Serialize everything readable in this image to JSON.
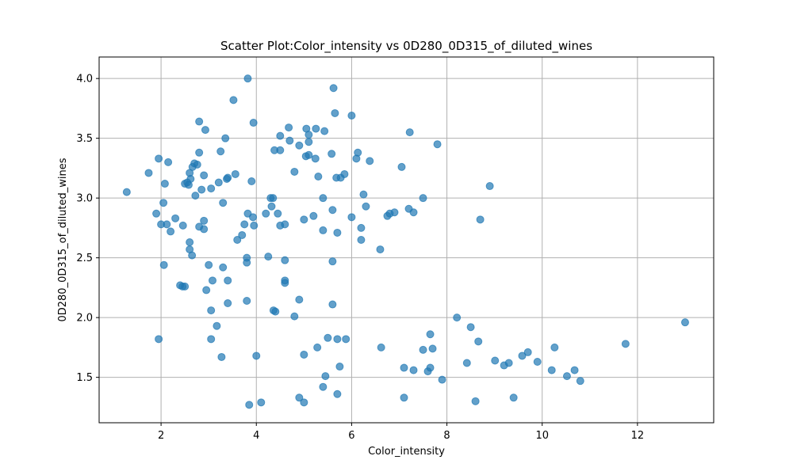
{
  "chart_data": {
    "type": "scatter",
    "title": "Scatter Plot:Color_intensity vs 0D280_0D315_of_diluted_wines",
    "xlabel": "Color_intensity",
    "ylabel": "0D280_0D315_of_diluted_wines",
    "xlim": [
      0.7,
      13.6
    ],
    "ylim": [
      1.12,
      4.18
    ],
    "xticks": [
      2,
      4,
      6,
      8,
      10,
      12
    ],
    "xtick_labels": [
      "2",
      "4",
      "6",
      "8",
      "10",
      "12"
    ],
    "yticks": [
      1.5,
      2.0,
      2.5,
      3.0,
      3.5,
      4.0
    ],
    "ytick_labels": [
      "1.5",
      "2.0",
      "2.5",
      "3.0",
      "3.5",
      "4.0"
    ],
    "grid": true,
    "point_color": "#1f77b4",
    "point_opacity": 0.7,
    "points": [
      [
        1.28,
        3.05
      ],
      [
        1.74,
        3.21
      ],
      [
        1.9,
        2.87
      ],
      [
        1.95,
        3.33
      ],
      [
        1.95,
        1.82
      ],
      [
        2.0,
        2.78
      ],
      [
        2.05,
        2.96
      ],
      [
        2.06,
        2.44
      ],
      [
        2.08,
        3.12
      ],
      [
        2.12,
        2.78
      ],
      [
        2.15,
        3.3
      ],
      [
        2.2,
        2.72
      ],
      [
        2.3,
        2.83
      ],
      [
        2.4,
        2.27
      ],
      [
        2.45,
        2.26
      ],
      [
        2.46,
        2.77
      ],
      [
        2.5,
        2.26
      ],
      [
        2.5,
        3.12
      ],
      [
        2.55,
        3.13
      ],
      [
        2.58,
        3.11
      ],
      [
        2.6,
        3.21
      ],
      [
        2.6,
        2.63
      ],
      [
        2.6,
        2.57
      ],
      [
        2.62,
        3.16
      ],
      [
        2.65,
        2.52
      ],
      [
        2.66,
        3.26
      ],
      [
        2.7,
        3.29
      ],
      [
        2.72,
        3.02
      ],
      [
        2.76,
        3.28
      ],
      [
        2.8,
        3.64
      ],
      [
        2.8,
        2.76
      ],
      [
        2.8,
        3.38
      ],
      [
        2.85,
        3.07
      ],
      [
        2.9,
        3.19
      ],
      [
        2.9,
        2.74
      ],
      [
        2.9,
        2.81
      ],
      [
        2.93,
        3.57
      ],
      [
        2.95,
        2.23
      ],
      [
        3.0,
        2.44
      ],
      [
        3.05,
        2.06
      ],
      [
        3.05,
        1.82
      ],
      [
        3.05,
        3.08
      ],
      [
        3.08,
        2.31
      ],
      [
        3.17,
        1.93
      ],
      [
        3.21,
        3.13
      ],
      [
        3.25,
        3.39
      ],
      [
        3.27,
        1.67
      ],
      [
        3.3,
        2.96
      ],
      [
        3.3,
        2.42
      ],
      [
        3.35,
        3.5
      ],
      [
        3.38,
        3.16
      ],
      [
        3.4,
        2.31
      ],
      [
        3.4,
        3.17
      ],
      [
        3.4,
        2.12
      ],
      [
        3.52,
        3.82
      ],
      [
        3.56,
        3.2
      ],
      [
        3.6,
        2.65
      ],
      [
        3.7,
        2.69
      ],
      [
        3.75,
        2.78
      ],
      [
        3.8,
        2.14
      ],
      [
        3.8,
        2.5
      ],
      [
        3.8,
        2.46
      ],
      [
        3.82,
        2.87
      ],
      [
        3.82,
        4.0
      ],
      [
        3.85,
        1.27
      ],
      [
        3.9,
        3.14
      ],
      [
        3.93,
        2.84
      ],
      [
        3.94,
        3.63
      ],
      [
        3.95,
        2.77
      ],
      [
        4.0,
        1.68
      ],
      [
        4.1,
        1.29
      ],
      [
        4.2,
        2.87
      ],
      [
        4.25,
        2.51
      ],
      [
        4.3,
        3.0
      ],
      [
        4.32,
        2.93
      ],
      [
        4.35,
        3.0
      ],
      [
        4.36,
        2.06
      ],
      [
        4.38,
        3.4
      ],
      [
        4.4,
        2.05
      ],
      [
        4.45,
        2.87
      ],
      [
        4.5,
        3.52
      ],
      [
        4.5,
        2.77
      ],
      [
        4.5,
        3.4
      ],
      [
        4.6,
        2.78
      ],
      [
        4.6,
        2.48
      ],
      [
        4.6,
        2.29
      ],
      [
        4.6,
        2.31
      ],
      [
        4.68,
        3.59
      ],
      [
        4.7,
        3.48
      ],
      [
        4.8,
        3.22
      ],
      [
        4.8,
        2.01
      ],
      [
        4.9,
        3.44
      ],
      [
        4.9,
        2.15
      ],
      [
        4.9,
        1.33
      ],
      [
        5.0,
        2.82
      ],
      [
        5.0,
        1.29
      ],
      [
        5.0,
        1.69
      ],
      [
        5.04,
        3.35
      ],
      [
        5.05,
        3.58
      ],
      [
        5.1,
        3.53
      ],
      [
        5.1,
        3.36
      ],
      [
        5.1,
        3.47
      ],
      [
        5.2,
        2.85
      ],
      [
        5.24,
        3.33
      ],
      [
        5.25,
        3.58
      ],
      [
        5.28,
        1.75
      ],
      [
        5.3,
        3.18
      ],
      [
        5.4,
        1.42
      ],
      [
        5.4,
        2.73
      ],
      [
        5.4,
        3.0
      ],
      [
        5.43,
        3.56
      ],
      [
        5.45,
        1.51
      ],
      [
        5.5,
        1.83
      ],
      [
        5.58,
        3.37
      ],
      [
        5.6,
        2.9
      ],
      [
        5.6,
        2.47
      ],
      [
        5.6,
        2.11
      ],
      [
        5.62,
        3.92
      ],
      [
        5.65,
        3.71
      ],
      [
        5.68,
        3.17
      ],
      [
        5.7,
        2.71
      ],
      [
        5.7,
        1.82
      ],
      [
        5.7,
        1.36
      ],
      [
        5.75,
        1.59
      ],
      [
        5.77,
        3.17
      ],
      [
        5.85,
        3.2
      ],
      [
        5.88,
        1.82
      ],
      [
        6.0,
        3.69
      ],
      [
        6.0,
        2.84
      ],
      [
        6.1,
        3.33
      ],
      [
        6.13,
        3.38
      ],
      [
        6.2,
        2.65
      ],
      [
        6.2,
        2.75
      ],
      [
        6.25,
        3.03
      ],
      [
        6.3,
        2.93
      ],
      [
        6.38,
        3.31
      ],
      [
        6.6,
        2.57
      ],
      [
        6.62,
        1.75
      ],
      [
        6.75,
        2.85
      ],
      [
        6.8,
        2.87
      ],
      [
        6.9,
        2.88
      ],
      [
        7.05,
        3.26
      ],
      [
        7.1,
        1.33
      ],
      [
        7.1,
        1.58
      ],
      [
        7.2,
        2.91
      ],
      [
        7.22,
        3.55
      ],
      [
        7.3,
        2.88
      ],
      [
        7.3,
        1.56
      ],
      [
        7.5,
        3.0
      ],
      [
        7.5,
        1.73
      ],
      [
        7.6,
        1.55
      ],
      [
        7.65,
        1.86
      ],
      [
        7.65,
        1.58
      ],
      [
        7.7,
        1.74
      ],
      [
        7.8,
        3.45
      ],
      [
        7.9,
        1.48
      ],
      [
        8.21,
        2.0
      ],
      [
        8.42,
        1.62
      ],
      [
        8.5,
        1.92
      ],
      [
        8.6,
        1.3
      ],
      [
        8.66,
        1.8
      ],
      [
        8.7,
        2.82
      ],
      [
        8.9,
        3.1
      ],
      [
        9.01,
        1.64
      ],
      [
        9.2,
        1.6
      ],
      [
        9.3,
        1.62
      ],
      [
        9.4,
        1.33
      ],
      [
        9.58,
        1.68
      ],
      [
        9.7,
        1.71
      ],
      [
        9.9,
        1.63
      ],
      [
        10.2,
        1.56
      ],
      [
        10.26,
        1.75
      ],
      [
        10.52,
        1.51
      ],
      [
        10.68,
        1.56
      ],
      [
        10.8,
        1.47
      ],
      [
        11.75,
        1.78
      ],
      [
        13.0,
        1.96
      ]
    ]
  }
}
